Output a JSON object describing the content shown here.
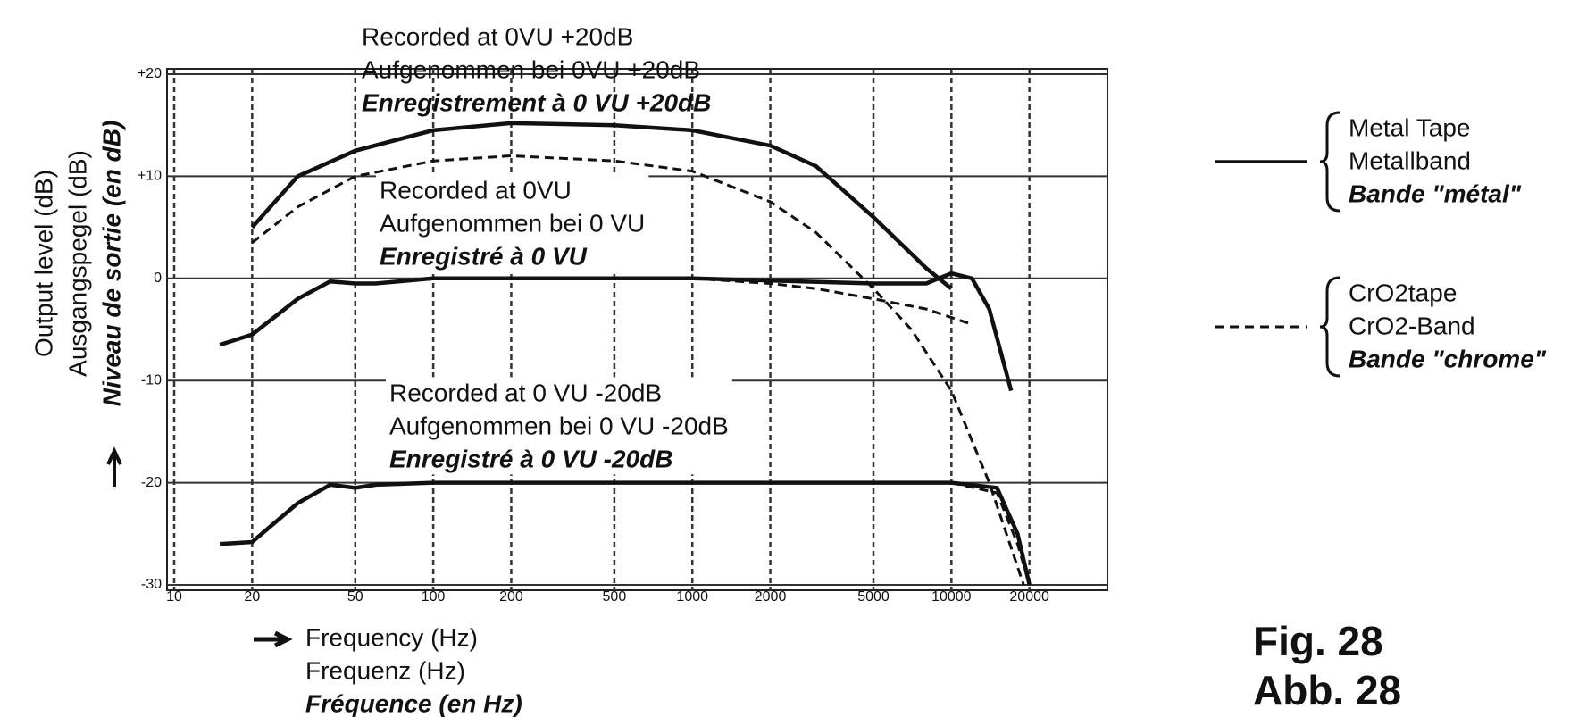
{
  "chart_data": {
    "type": "line",
    "xscale": "log",
    "xlim": [
      10,
      40000
    ],
    "ylim": [
      -30,
      20
    ],
    "xticks": [
      10,
      20,
      50,
      100,
      200,
      500,
      1000,
      2000,
      5000,
      10000,
      20000
    ],
    "yticks": [
      {
        "value": 20,
        "label": "+20"
      },
      {
        "value": 10,
        "label": "+10"
      },
      0,
      -10,
      -20,
      -30
    ],
    "grid": true,
    "y_label": [
      "Output level (dB)",
      "Ausgangspegel (dB)",
      "Niveau de sortie (en dB)"
    ],
    "x_label": [
      "Frequency (Hz)",
      "Frequenz (Hz)",
      "Fréquence (en Hz)"
    ],
    "annotations": [
      [
        "Recorded at 0VU +20dB",
        "Aufgenommen bei 0VU +20dB",
        "Enregistrement à 0 VU +20dB"
      ],
      [
        "Recorded at 0VU",
        "Aufgenommen bei 0 VU",
        "Enregistré à 0 VU"
      ],
      [
        "Recorded at 0 VU -20dB",
        "Aufgenommen bei 0 VU -20dB",
        "Enregistré à 0 VU -20dB"
      ]
    ],
    "figure_label": [
      "Fig. 28",
      "Abb. 28"
    ],
    "series": [
      {
        "name": [
          "Metal Tape",
          "Metallband",
          "Bande \"métal\""
        ],
        "color": "#111111",
        "dash": false,
        "curves": [
          {
            "x": [
              20,
              30,
              50,
              100,
              200,
              500,
              1000,
              2000,
              3000,
              5000,
              8000,
              10000
            ],
            "values": [
              5,
              10,
              12.5,
              14.5,
              15.2,
              15,
              14.5,
              13,
              11,
              6,
              1,
              -1
            ]
          },
          {
            "x": [
              15,
              20,
              30,
              40,
              50,
              60,
              100,
              1000,
              5000,
              8000,
              10000,
              12000,
              14000,
              17000
            ],
            "values": [
              -6.5,
              -5.5,
              -2,
              -0.3,
              -0.5,
              -0.5,
              0,
              0,
              -0.5,
              -0.5,
              0.5,
              0,
              -3,
              -11
            ]
          },
          {
            "x": [
              15,
              20,
              30,
              40,
              50,
              60,
              100,
              1000,
              10000,
              15000,
              18000,
              20000
            ],
            "values": [
              -26,
              -25.8,
              -22,
              -20.2,
              -20.5,
              -20.2,
              -20,
              -20,
              -20,
              -20.5,
              -25,
              -30
            ]
          }
        ]
      },
      {
        "name": [
          "CrO2tape",
          "CrO2-Band",
          "Bande \"chrome\""
        ],
        "color": "#111111",
        "dash": true,
        "curves": [
          {
            "x": [
              20,
              30,
              50,
              100,
              200,
              500,
              1000,
              2000,
              3000,
              5000,
              7000,
              10000,
              14000,
              19000
            ],
            "values": [
              3.5,
              7,
              10,
              11.5,
              12,
              11.5,
              10.5,
              7.5,
              4.5,
              -1,
              -5,
              -11,
              -20,
              -30
            ]
          },
          {
            "x": [
              1000,
              2000,
              3000,
              5000,
              8000,
              12000
            ],
            "values": [
              0,
              -0.5,
              -1,
              -2,
              -3,
              -4.5
            ]
          },
          {
            "x": [
              10000,
              15000,
              18000,
              20000
            ],
            "values": [
              -20,
              -21,
              -26,
              -30
            ]
          }
        ]
      }
    ]
  }
}
